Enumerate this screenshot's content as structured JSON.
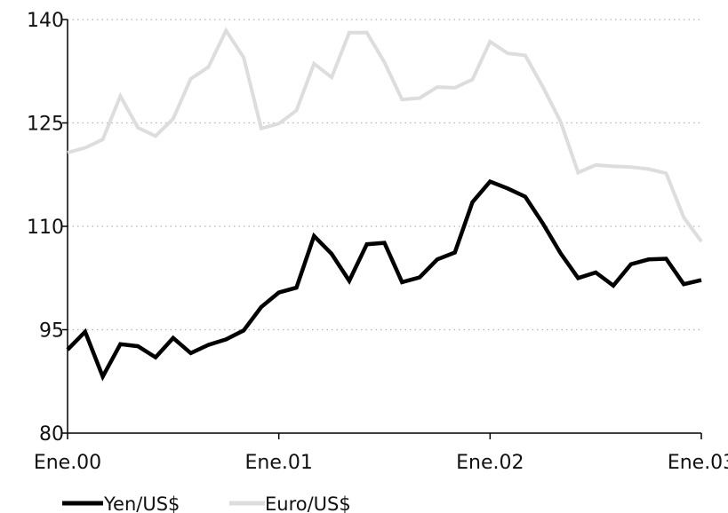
{
  "chart_data": {
    "type": "line",
    "title": "",
    "xlabel": "",
    "ylabel": "",
    "x_tick_labels": [
      "Ene.00",
      "Ene.01",
      "Ene.02",
      "Ene.03"
    ],
    "y_ticks": [
      80,
      95,
      110,
      125,
      140
    ],
    "ylim": [
      80,
      140
    ],
    "xlim": [
      0,
      36
    ],
    "grid": "horizontal dotted",
    "legend_position": "bottom-left",
    "series": [
      {
        "name": "Yen/US$",
        "color": "#000000",
        "x": [
          0,
          1,
          2,
          3,
          4,
          5,
          6,
          7,
          8,
          9,
          10,
          11,
          12,
          13,
          14,
          15,
          16,
          17,
          18,
          19,
          20,
          21,
          22,
          23,
          24,
          25,
          26,
          27,
          28,
          29,
          30,
          31,
          32,
          33,
          34,
          35,
          36
        ],
        "values": [
          92.1,
          94.7,
          88.2,
          92.9,
          92.6,
          91.0,
          93.8,
          91.6,
          92.8,
          93.6,
          94.9,
          98.3,
          100.4,
          101.1,
          108.6,
          106.0,
          102.1,
          107.4,
          107.6,
          101.9,
          102.6,
          105.2,
          106.2,
          113.5,
          116.5,
          115.5,
          114.3,
          110.4,
          106.1,
          102.5,
          103.3,
          101.4,
          104.5,
          105.2,
          105.3,
          101.6,
          102.2
        ]
      },
      {
        "name": "Euro/US$",
        "color": "#dddddd",
        "x": [
          0,
          1,
          2,
          3,
          4,
          5,
          6,
          7,
          8,
          9,
          10,
          11,
          12,
          13,
          14,
          15,
          16,
          17,
          18,
          19,
          20,
          21,
          22,
          23,
          24,
          25,
          26,
          27,
          28,
          29,
          30,
          31,
          32,
          33,
          34,
          35,
          36
        ],
        "values": [
          120.7,
          121.4,
          122.6,
          128.9,
          124.3,
          123.1,
          125.6,
          131.4,
          133.1,
          138.4,
          134.5,
          124.2,
          124.9,
          126.8,
          133.6,
          131.6,
          138.1,
          138.1,
          133.8,
          128.4,
          128.6,
          130.2,
          130.1,
          131.3,
          136.8,
          135.1,
          134.8,
          130.2,
          125.2,
          117.8,
          118.9,
          118.7,
          118.6,
          118.3,
          117.7,
          111.3,
          107.8
        ]
      }
    ]
  }
}
